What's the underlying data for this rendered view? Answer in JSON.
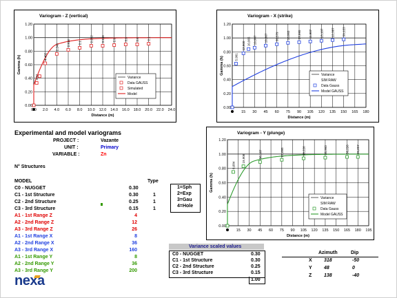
{
  "charts": [
    {
      "title": "Variogram - Z (vertical)",
      "xlabel": "Distance (m)",
      "ylabel": "Gamma (h)",
      "accent": "#e02020",
      "legend": [
        "Variance",
        "Data GAUSS",
        "Simulated",
        "Model"
      ]
    },
    {
      "title": "Variogram - X (strike)",
      "xlabel": "Distance (m)",
      "ylabel": "Gamma (h)",
      "accent": "#1f3fe0",
      "legend": [
        "Variance",
        "SIM RAW",
        "Data Gauss",
        "Model GAUSS"
      ]
    },
    {
      "title": "Variogram - Y (plunge)",
      "xlabel": "Distance (m)",
      "ylabel": "Gamma (h)",
      "accent": "#2a9a2a",
      "legend": [
        "Variance",
        "SIM RAW",
        "Data Gauss",
        "Model GAUSS"
      ]
    }
  ],
  "chart_data": [
    {
      "type": "line",
      "title": "Variogram - Z (vertical)",
      "xlabel": "Distance (m)",
      "ylabel": "Gamma (h)",
      "xlim": [
        0,
        24
      ],
      "ylim": [
        0,
        1.2
      ],
      "xticks": [
        "0.0",
        "2.0",
        "4.0",
        "6.0",
        "8.0",
        "10.0",
        "12.0",
        "14.0",
        "16.0",
        "18.0",
        "20.0",
        "22.0",
        "24.0"
      ],
      "yticks": [
        "0.00",
        "0.20",
        "0.40",
        "0.60",
        "0.80",
        "1.00",
        "1.20"
      ],
      "series": [
        {
          "name": "Data GAUSS",
          "x": [
            0,
            0.5,
            1.0,
            2.0,
            4.0,
            6.0,
            8.0,
            10.0,
            12.0,
            14.0,
            16.0,
            18.0,
            20.0
          ],
          "y": [
            0.0,
            0.33,
            0.43,
            0.62,
            0.76,
            0.82,
            0.85,
            0.88,
            0.88,
            0.89,
            0.9,
            0.9,
            0.91
          ]
        },
        {
          "name": "Model",
          "range": 4,
          "nugget": 0.3,
          "sill": 1.0
        }
      ],
      "point_labels": [
        "",
        "3.97",
        "",
        "4.482",
        "2.246",
        "2.916",
        "2.1",
        "2.252",
        "3.156",
        "2.9",
        "3.9",
        "2.6",
        "2.1"
      ]
    },
    {
      "type": "line",
      "title": "Variogram - X (strike)",
      "xlabel": "Distance (m)",
      "ylabel": "Gamma (h)",
      "xlim": [
        0,
        180
      ],
      "ylim": [
        0,
        1.2
      ],
      "xticks": [
        "0",
        "15",
        "30",
        "45",
        "60",
        "75",
        "90",
        "105",
        "120",
        "135",
        "150",
        "165",
        "180"
      ],
      "yticks": [
        "0.00",
        "0.20",
        "0.40",
        "0.60",
        "0.80",
        "1.00",
        "1.20"
      ],
      "series": [
        {
          "name": "Data Gauss",
          "x": [
            0,
            5,
            15,
            22,
            30,
            45,
            60,
            75,
            90,
            105,
            120,
            135,
            150
          ],
          "y": [
            0.0,
            0.63,
            0.78,
            0.84,
            0.86,
            0.89,
            0.91,
            0.93,
            0.94,
            0.95,
            0.96,
            0.97,
            0.98
          ]
        },
        {
          "name": "Model GAUSS",
          "range": 160,
          "nugget": 0.3,
          "sill": 1.0
        }
      ],
      "point_labels": [
        "",
        "5.901",
        "12,960",
        "10,965",
        "19,907",
        "19,867",
        "30,579",
        "10,993",
        "37,995",
        "11,987",
        "13,107",
        "12,387",
        "50,123"
      ]
    },
    {
      "type": "line",
      "title": "Variogram - Y (plunge)",
      "xlabel": "Distance (m)",
      "ylabel": "Gamma (h)",
      "xlim": [
        0,
        195
      ],
      "ylim": [
        0,
        1.2
      ],
      "xticks": [
        "0",
        "15",
        "30",
        "45",
        "60",
        "75",
        "90",
        "105",
        "120",
        "135",
        "150",
        "165",
        "180",
        "195"
      ],
      "yticks": [
        "0.00",
        "0.20",
        "0.40",
        "0.60",
        "0.80",
        "1.00",
        "1.20"
      ],
      "series": [
        {
          "name": "Data Gauss",
          "x": [
            0,
            8,
            22,
            45,
            75,
            105,
            135,
            165,
            180
          ],
          "y": [
            0.0,
            0.75,
            0.83,
            0.89,
            0.92,
            0.94,
            0.95,
            0.96,
            0.96
          ]
        },
        {
          "name": "Model GAUSS",
          "range": 36,
          "nugget": 0.3,
          "sill": 1.0
        }
      ],
      "point_labels": [
        "",
        "8,684",
        "19,908",
        "36,187",
        "57,695",
        "38,226",
        "35,993",
        "36,226",
        "35,257"
      ]
    }
  ],
  "section": {
    "title": "Experimental and model variograms",
    "project_label": "PROJECT :",
    "project_value": "Vazante",
    "unit_label": "UNIT :",
    "unit_value": "Primary",
    "variable_label": "VARIABLE :",
    "variable_value": "Zn"
  },
  "structures": {
    "count_label": "N° Structures",
    "model_header": "MODEL",
    "type_header": "Type",
    "rows": [
      {
        "label": "C0 - NUGGET",
        "value": "0.30",
        "type": "",
        "color": "#000000"
      },
      {
        "label": "C1 - 1st Structure",
        "value": "0.30",
        "type": "1",
        "color": "#000000"
      },
      {
        "label": "C2 - 2nd Structure",
        "value": "0.25",
        "type": "1",
        "color": "#000000"
      },
      {
        "label": "C3 - 3rd Structure",
        "value": "0.15",
        "type": "1",
        "color": "#000000"
      },
      {
        "label": "A1 - 1st Range  Z",
        "value": "4",
        "type": "",
        "color": "#e00000"
      },
      {
        "label": "A2 - 2nd Range  Z",
        "value": "12",
        "type": "",
        "color": "#e00000"
      },
      {
        "label": "A3 - 3rd Range  Z",
        "value": "26",
        "type": "",
        "color": "#e00000"
      },
      {
        "label": "A1 - 1st Range  X",
        "value": "8",
        "type": "",
        "color": "#1f3fe0"
      },
      {
        "label": "A2 - 2nd Range  X",
        "value": "36",
        "type": "",
        "color": "#1f3fe0"
      },
      {
        "label": "A3 - 3rd Range  X",
        "value": "160",
        "type": "",
        "color": "#1f3fe0"
      },
      {
        "label": "A1 - 1st Range  Y",
        "value": "8",
        "type": "",
        "color": "#339900"
      },
      {
        "label": "A2 - 2nd Range  Y",
        "value": "36",
        "type": "",
        "color": "#339900"
      },
      {
        "label": "A3 - 3rd Range  Y",
        "value": "200",
        "type": "",
        "color": "#339900"
      }
    ],
    "type_legend": [
      "1=Sph",
      "2=Exp",
      "3=Gau",
      "4=Hole"
    ]
  },
  "variance": {
    "title": "Variance scaled values",
    "rows": [
      {
        "label": "C0 - NUGGET",
        "value": "0.30"
      },
      {
        "label": "C1 - 1st Structure",
        "value": "0.30"
      },
      {
        "label": "C2 - 2nd Structure",
        "value": "0.25"
      },
      {
        "label": "C3 - 3rd Structure",
        "value": "0.15"
      }
    ],
    "total": "1.00"
  },
  "orientation": {
    "azimuth_header": "Azimuth",
    "dip_header": "Dip",
    "rows": [
      {
        "axis": "X",
        "azimuth": "318",
        "dip": "-50"
      },
      {
        "axis": "Y",
        "azimuth": "48",
        "dip": "0"
      },
      {
        "axis": "Z",
        "azimuth": "138",
        "dip": "-40"
      }
    ]
  },
  "logo": {
    "text": "nexa",
    "color": "#1a3a8c",
    "accent": "#e8a020"
  }
}
